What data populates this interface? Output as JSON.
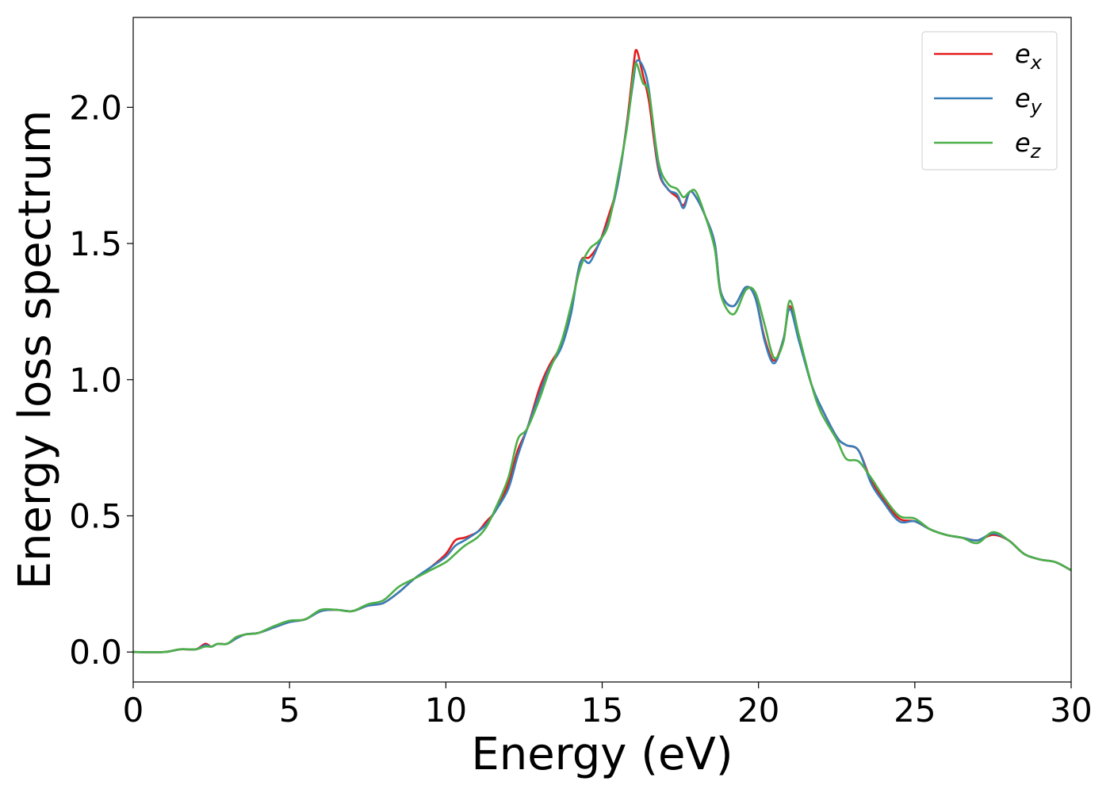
{
  "chart_data": {
    "type": "line",
    "xlabel": "Energy (eV)",
    "ylabel": "Energy loss spectrum",
    "xlim": [
      0,
      30
    ],
    "ylim": [
      -0.11,
      2.33
    ],
    "xticks": [
      0,
      5,
      10,
      15,
      20,
      25,
      30
    ],
    "xtick_labels": [
      "0",
      "5",
      "10",
      "15",
      "20",
      "25",
      "30"
    ],
    "yticks": [
      0.0,
      0.5,
      1.0,
      1.5,
      2.0
    ],
    "ytick_labels": [
      "0.0",
      "0.5",
      "1.0",
      "1.5",
      "2.0"
    ],
    "grid": false,
    "legend_position": "top-right",
    "series": [
      {
        "name": "e_x",
        "label_base": "e",
        "label_sub": "x",
        "color": "#e41a1c",
        "points": [
          [
            0,
            0.0
          ],
          [
            1,
            0.0
          ],
          [
            1.5,
            0.01
          ],
          [
            2,
            0.01
          ],
          [
            2.3,
            0.03
          ],
          [
            2.5,
            0.02
          ],
          [
            2.7,
            0.03
          ],
          [
            3,
            0.03
          ],
          [
            3.3,
            0.05
          ],
          [
            3.6,
            0.065
          ],
          [
            4,
            0.07
          ],
          [
            4.5,
            0.09
          ],
          [
            5,
            0.11
          ],
          [
            5.5,
            0.12
          ],
          [
            6,
            0.15
          ],
          [
            6.5,
            0.155
          ],
          [
            7,
            0.15
          ],
          [
            7.5,
            0.17
          ],
          [
            8,
            0.18
          ],
          [
            8.5,
            0.22
          ],
          [
            9,
            0.27
          ],
          [
            9.5,
            0.31
          ],
          [
            10,
            0.36
          ],
          [
            10.3,
            0.41
          ],
          [
            10.6,
            0.42
          ],
          [
            11,
            0.44
          ],
          [
            11.3,
            0.48
          ],
          [
            11.6,
            0.52
          ],
          [
            12,
            0.62
          ],
          [
            12.3,
            0.74
          ],
          [
            12.6,
            0.82
          ],
          [
            13,
            0.97
          ],
          [
            13.3,
            1.05
          ],
          [
            13.7,
            1.13
          ],
          [
            14,
            1.25
          ],
          [
            14.3,
            1.43
          ],
          [
            14.6,
            1.45
          ],
          [
            14.9,
            1.5
          ],
          [
            15.2,
            1.6
          ],
          [
            15.5,
            1.72
          ],
          [
            15.8,
            1.95
          ],
          [
            16,
            2.15
          ],
          [
            16.1,
            2.21
          ],
          [
            16.3,
            2.12
          ],
          [
            16.5,
            2.02
          ],
          [
            16.8,
            1.77
          ],
          [
            17.1,
            1.7
          ],
          [
            17.4,
            1.67
          ],
          [
            17.6,
            1.64
          ],
          [
            17.8,
            1.69
          ],
          [
            18,
            1.67
          ],
          [
            18.3,
            1.6
          ],
          [
            18.6,
            1.5
          ],
          [
            18.8,
            1.32
          ],
          [
            19.2,
            1.27
          ],
          [
            19.6,
            1.34
          ],
          [
            19.9,
            1.3
          ],
          [
            20.2,
            1.15
          ],
          [
            20.5,
            1.07
          ],
          [
            20.8,
            1.15
          ],
          [
            21,
            1.27
          ],
          [
            21.3,
            1.15
          ],
          [
            21.7,
            0.98
          ],
          [
            22,
            0.9
          ],
          [
            22.5,
            0.79
          ],
          [
            22.8,
            0.76
          ],
          [
            23.2,
            0.74
          ],
          [
            23.6,
            0.63
          ],
          [
            24,
            0.56
          ],
          [
            24.5,
            0.49
          ],
          [
            25,
            0.48
          ],
          [
            25.5,
            0.45
          ],
          [
            26,
            0.43
          ],
          [
            26.5,
            0.42
          ],
          [
            27,
            0.41
          ],
          [
            27.5,
            0.43
          ],
          [
            28,
            0.41
          ],
          [
            28.5,
            0.36
          ],
          [
            29,
            0.34
          ],
          [
            29.5,
            0.33
          ],
          [
            30,
            0.3
          ]
        ]
      },
      {
        "name": "e_y",
        "label_base": "e",
        "label_sub": "y",
        "color": "#377eb8",
        "points": [
          [
            0,
            0.0
          ],
          [
            1,
            0.0
          ],
          [
            1.5,
            0.01
          ],
          [
            2,
            0.01
          ],
          [
            2.3,
            0.025
          ],
          [
            2.5,
            0.02
          ],
          [
            2.7,
            0.03
          ],
          [
            3,
            0.03
          ],
          [
            3.3,
            0.05
          ],
          [
            3.6,
            0.065
          ],
          [
            4,
            0.07
          ],
          [
            4.5,
            0.09
          ],
          [
            5,
            0.11
          ],
          [
            5.5,
            0.12
          ],
          [
            6,
            0.15
          ],
          [
            6.5,
            0.155
          ],
          [
            7,
            0.15
          ],
          [
            7.5,
            0.17
          ],
          [
            8,
            0.18
          ],
          [
            8.5,
            0.22
          ],
          [
            9,
            0.27
          ],
          [
            9.5,
            0.31
          ],
          [
            10,
            0.35
          ],
          [
            10.3,
            0.39
          ],
          [
            10.6,
            0.41
          ],
          [
            11,
            0.44
          ],
          [
            11.3,
            0.47
          ],
          [
            11.6,
            0.52
          ],
          [
            12,
            0.6
          ],
          [
            12.3,
            0.72
          ],
          [
            12.6,
            0.82
          ],
          [
            13,
            0.95
          ],
          [
            13.3,
            1.04
          ],
          [
            13.7,
            1.12
          ],
          [
            14,
            1.24
          ],
          [
            14.3,
            1.43
          ],
          [
            14.6,
            1.43
          ],
          [
            14.9,
            1.5
          ],
          [
            15.2,
            1.58
          ],
          [
            15.5,
            1.72
          ],
          [
            15.8,
            1.94
          ],
          [
            16,
            2.1
          ],
          [
            16.1,
            2.17
          ],
          [
            16.3,
            2.15
          ],
          [
            16.5,
            2.06
          ],
          [
            16.8,
            1.78
          ],
          [
            17.1,
            1.7
          ],
          [
            17.4,
            1.68
          ],
          [
            17.6,
            1.63
          ],
          [
            17.8,
            1.69
          ],
          [
            18,
            1.67
          ],
          [
            18.3,
            1.6
          ],
          [
            18.6,
            1.5
          ],
          [
            18.8,
            1.32
          ],
          [
            19.2,
            1.27
          ],
          [
            19.6,
            1.34
          ],
          [
            19.9,
            1.3
          ],
          [
            20.2,
            1.14
          ],
          [
            20.5,
            1.06
          ],
          [
            20.8,
            1.15
          ],
          [
            21,
            1.26
          ],
          [
            21.3,
            1.14
          ],
          [
            21.7,
            0.98
          ],
          [
            22,
            0.9
          ],
          [
            22.5,
            0.79
          ],
          [
            22.8,
            0.76
          ],
          [
            23.2,
            0.74
          ],
          [
            23.6,
            0.62
          ],
          [
            24,
            0.55
          ],
          [
            24.5,
            0.48
          ],
          [
            25,
            0.48
          ],
          [
            25.5,
            0.45
          ],
          [
            26,
            0.43
          ],
          [
            26.5,
            0.42
          ],
          [
            27,
            0.41
          ],
          [
            27.5,
            0.435
          ],
          [
            28,
            0.41
          ],
          [
            28.5,
            0.36
          ],
          [
            29,
            0.34
          ],
          [
            29.5,
            0.33
          ],
          [
            30,
            0.3
          ]
        ]
      },
      {
        "name": "e_z",
        "label_base": "e",
        "label_sub": "z",
        "color": "#4daf4a",
        "points": [
          [
            0,
            0.0
          ],
          [
            1,
            0.0
          ],
          [
            1.5,
            0.01
          ],
          [
            2,
            0.01
          ],
          [
            2.3,
            0.02
          ],
          [
            2.5,
            0.02
          ],
          [
            2.7,
            0.03
          ],
          [
            3,
            0.03
          ],
          [
            3.3,
            0.055
          ],
          [
            3.6,
            0.065
          ],
          [
            4,
            0.07
          ],
          [
            4.5,
            0.095
          ],
          [
            5,
            0.115
          ],
          [
            5.5,
            0.12
          ],
          [
            6,
            0.155
          ],
          [
            6.5,
            0.155
          ],
          [
            7,
            0.15
          ],
          [
            7.5,
            0.175
          ],
          [
            8,
            0.19
          ],
          [
            8.5,
            0.24
          ],
          [
            9,
            0.27
          ],
          [
            9.5,
            0.3
          ],
          [
            10,
            0.33
          ],
          [
            10.3,
            0.36
          ],
          [
            10.6,
            0.39
          ],
          [
            11,
            0.42
          ],
          [
            11.3,
            0.46
          ],
          [
            11.6,
            0.53
          ],
          [
            12,
            0.64
          ],
          [
            12.3,
            0.78
          ],
          [
            12.6,
            0.82
          ],
          [
            13,
            0.93
          ],
          [
            13.3,
            1.03
          ],
          [
            13.7,
            1.14
          ],
          [
            14,
            1.27
          ],
          [
            14.3,
            1.41
          ],
          [
            14.6,
            1.48
          ],
          [
            14.9,
            1.51
          ],
          [
            15.2,
            1.57
          ],
          [
            15.5,
            1.74
          ],
          [
            15.8,
            1.93
          ],
          [
            16,
            2.12
          ],
          [
            16.1,
            2.16
          ],
          [
            16.3,
            2.09
          ],
          [
            16.5,
            2.05
          ],
          [
            16.8,
            1.8
          ],
          [
            17.1,
            1.72
          ],
          [
            17.4,
            1.7
          ],
          [
            17.6,
            1.67
          ],
          [
            17.8,
            1.69
          ],
          [
            18,
            1.69
          ],
          [
            18.3,
            1.6
          ],
          [
            18.6,
            1.48
          ],
          [
            18.8,
            1.31
          ],
          [
            19.2,
            1.24
          ],
          [
            19.6,
            1.33
          ],
          [
            19.9,
            1.32
          ],
          [
            20.2,
            1.2
          ],
          [
            20.5,
            1.08
          ],
          [
            20.8,
            1.14
          ],
          [
            21,
            1.29
          ],
          [
            21.3,
            1.16
          ],
          [
            21.7,
            0.98
          ],
          [
            22,
            0.88
          ],
          [
            22.5,
            0.78
          ],
          [
            22.8,
            0.71
          ],
          [
            23.2,
            0.7
          ],
          [
            23.6,
            0.64
          ],
          [
            24,
            0.57
          ],
          [
            24.5,
            0.5
          ],
          [
            25,
            0.49
          ],
          [
            25.5,
            0.45
          ],
          [
            26,
            0.43
          ],
          [
            26.5,
            0.42
          ],
          [
            27,
            0.4
          ],
          [
            27.5,
            0.44
          ],
          [
            28,
            0.41
          ],
          [
            28.5,
            0.36
          ],
          [
            29,
            0.34
          ],
          [
            29.5,
            0.33
          ],
          [
            30,
            0.3
          ]
        ]
      }
    ]
  }
}
